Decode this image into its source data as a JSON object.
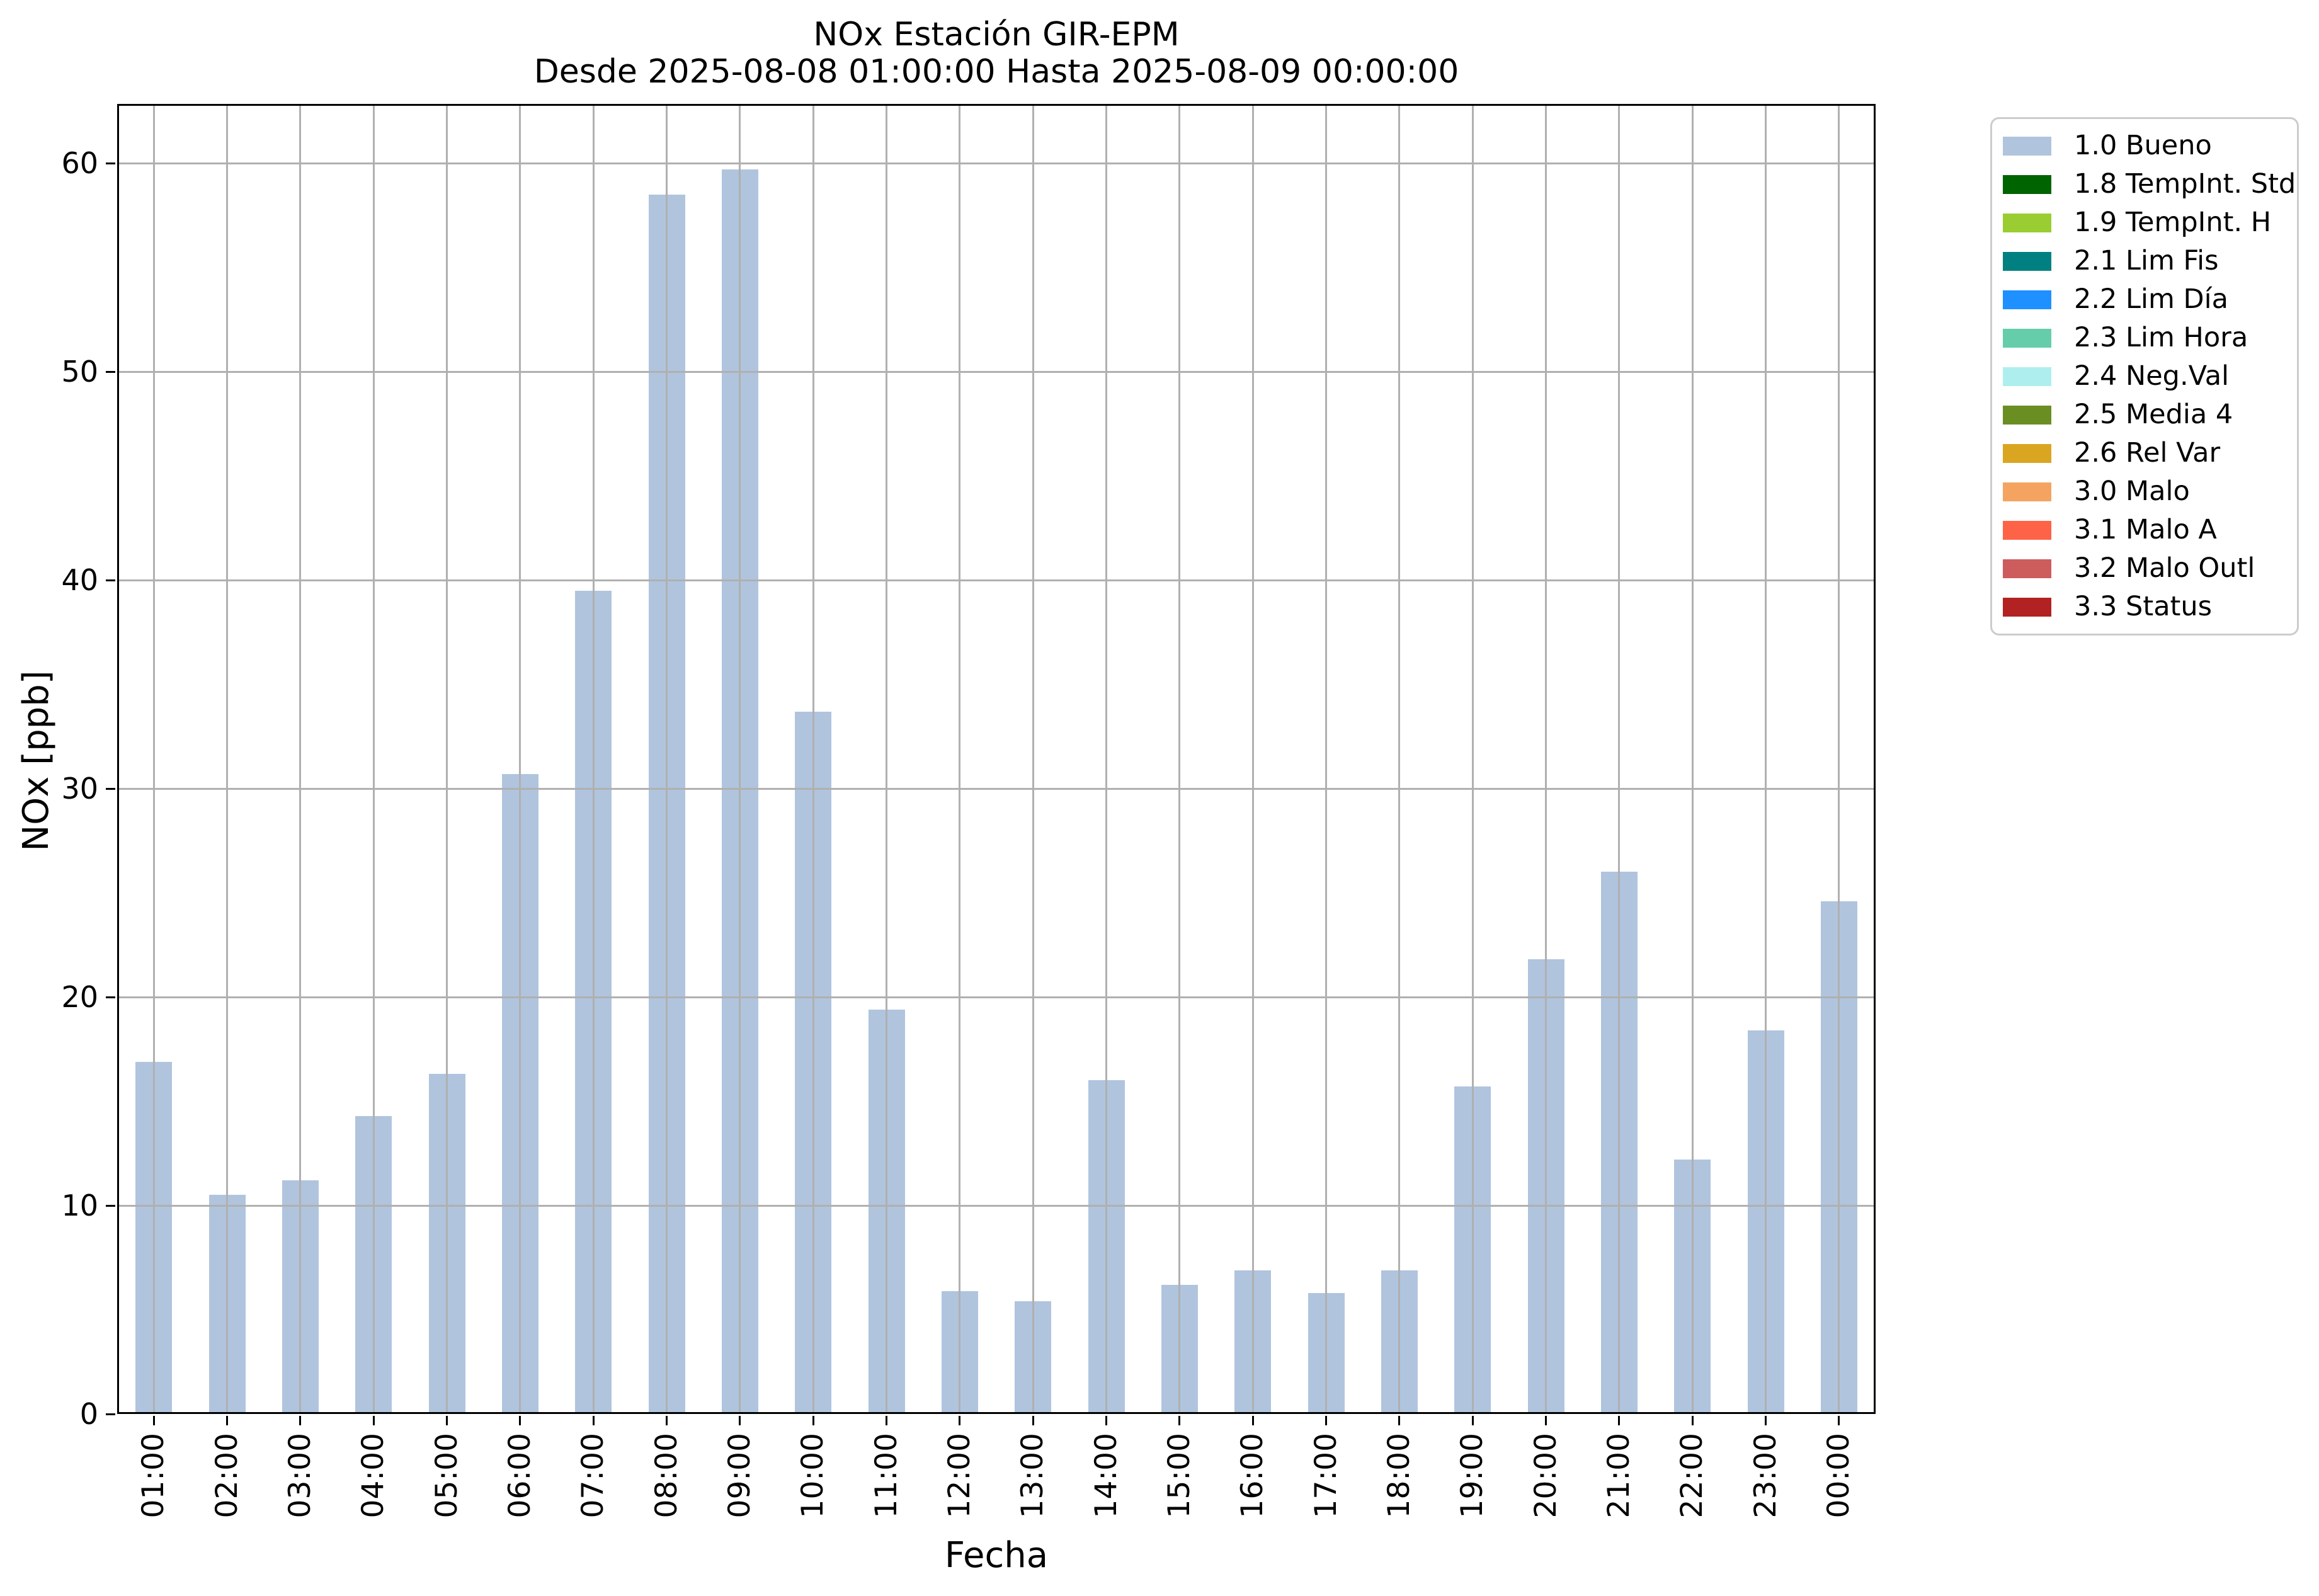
{
  "title": {
    "line1": "NOx Estación GIR-EPM",
    "line2": "Desde 2025-08-08 01:00:00 Hasta 2025-08-09 00:00:00"
  },
  "chart_data": {
    "type": "bar",
    "title": "NOx Estación GIR-EPM",
    "subtitle": "Desde 2025-08-08 01:00:00 Hasta 2025-08-09 00:00:00",
    "xlabel": "Fecha",
    "ylabel": "NOx [ppb]",
    "categories": [
      "01:00",
      "02:00",
      "03:00",
      "04:00",
      "05:00",
      "06:00",
      "07:00",
      "08:00",
      "09:00",
      "10:00",
      "11:00",
      "12:00",
      "13:00",
      "14:00",
      "15:00",
      "16:00",
      "17:00",
      "18:00",
      "19:00",
      "20:00",
      "21:00",
      "22:00",
      "23:00",
      "00:00"
    ],
    "series": [
      {
        "name": "1.0 Bueno",
        "color": "#B0C4DE",
        "values": [
          16.9,
          10.5,
          11.2,
          14.3,
          16.3,
          30.7,
          39.5,
          58.5,
          59.7,
          33.7,
          19.4,
          5.9,
          5.4,
          16.0,
          6.2,
          6.9,
          5.8,
          6.9,
          15.7,
          21.8,
          26.0,
          12.2,
          18.4,
          24.6
        ]
      }
    ],
    "ylim": [
      0,
      62.8
    ],
    "yticks": [
      0,
      10,
      20,
      30,
      40,
      50,
      60
    ],
    "grid": true,
    "grid_color": "#b0b0b0",
    "bar_color": "#B0C4DE",
    "legend_position": "outside-upper-right",
    "legend_entries": [
      {
        "label": "1.0 Bueno",
        "color": "#B0C4DE"
      },
      {
        "label": "1.8 TempInt. Std",
        "color": "#006400"
      },
      {
        "label": "1.9 TempInt. H",
        "color": "#9ACD32"
      },
      {
        "label": "2.1 Lim Fis",
        "color": "#008080"
      },
      {
        "label": "2.2 Lim Día",
        "color": "#1E90FF"
      },
      {
        "label": "2.3 Lim Hora",
        "color": "#66CDAA"
      },
      {
        "label": "2.4 Neg.Val",
        "color": "#AFEEEE"
      },
      {
        "label": "2.5 Media 4",
        "color": "#6B8E23"
      },
      {
        "label": "2.6 Rel Var",
        "color": "#DAA520"
      },
      {
        "label": "3.0 Malo",
        "color": "#F4A460"
      },
      {
        "label": "3.1 Malo A",
        "color": "#FF6347"
      },
      {
        "label": "3.2 Malo Outl",
        "color": "#CD5C5C"
      },
      {
        "label": "3.3 Status",
        "color": "#B22222"
      }
    ]
  }
}
